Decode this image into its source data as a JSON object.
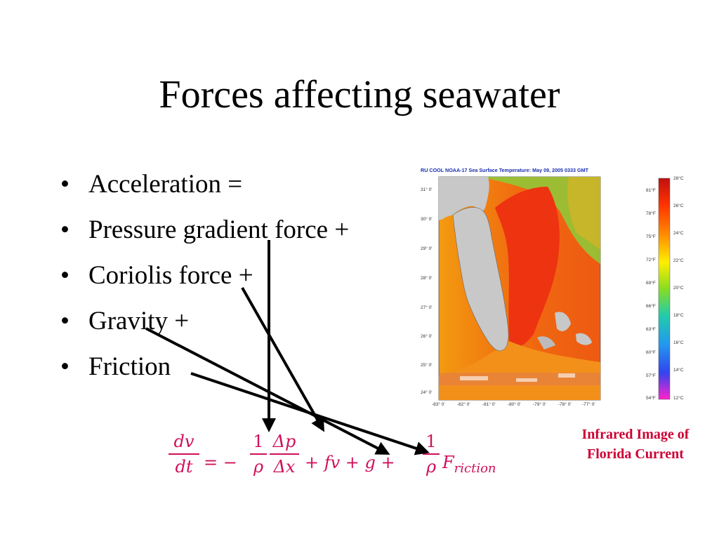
{
  "title": "Forces affecting seawater",
  "bullets": [
    "Acceleration =",
    "Pressure gradient force +",
    "Coriolis force +",
    "Gravity +",
    "Friction"
  ],
  "figure": {
    "header": "RU COOL  NOAA-17  Sea Surface Temperature:  May 09, 2005 0333 GMT",
    "lat_labels": [
      "31° 0'",
      "30° 0'",
      "29° 0'",
      "28° 0'",
      "27° 0'",
      "26° 0'",
      "25° 0'",
      "24° 0'"
    ],
    "lon_labels": [
      "-83° 0'",
      "-82° 0'",
      "-81° 0'",
      "-80° 0'",
      "-79° 0'",
      "-78° 0'",
      "-77° 0'"
    ],
    "colorbar_f": [
      "81°F",
      "78°F",
      "75°F",
      "72°F",
      "69°F",
      "66°F",
      "63°F",
      "60°F",
      "57°F",
      "54°F"
    ],
    "colorbar_c": [
      "28°C",
      "26°C",
      "24°C",
      "22°C",
      "20°C",
      "18°C",
      "16°C",
      "14°C",
      "12°C"
    ],
    "colors": {
      "land": "#c8c8c8",
      "warm": "#ee3311",
      "mid": "#f59a10",
      "cool": "#88d040"
    }
  },
  "caption": [
    "Infrared Image of",
    "Florida Current"
  ],
  "equation": {
    "lhs_num": "dv",
    "lhs_den": "dt",
    "equals_minus": "= −",
    "rho_num": "1",
    "rho_den": "ρ",
    "dp": "Δp",
    "dx": "Δx",
    "coriolis": "+ fv + g +",
    "fric_num": "1",
    "fric_den": "ρ",
    "fric_term": "F",
    "fric_sub": "riction",
    "color": "#d0105a"
  }
}
